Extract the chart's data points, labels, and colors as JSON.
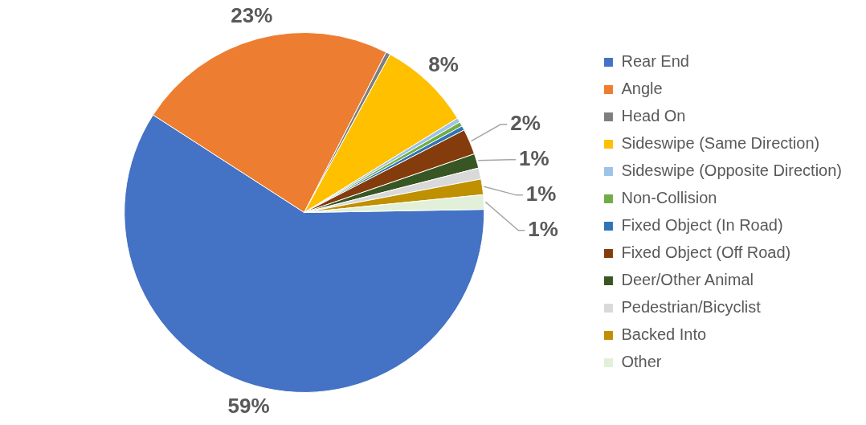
{
  "chart_data": {
    "type": "pie",
    "categories": [
      "Rear End",
      "Angle",
      "Head On",
      "Sideswipe (Same Direction)",
      "Sideswipe (Opposite Direction)",
      "Non-Collision",
      "Fixed Object (In Road)",
      "Fixed Object (Off Road)",
      "Deer/Other Animal",
      "Pedestrian/Bicyclist",
      "Backed Into",
      "Other"
    ],
    "values": [
      59.4,
      23.4,
      0.4,
      8.3,
      0.4,
      0.4,
      0.4,
      2.3,
      1.3,
      1.0,
      1.4,
      1.3
    ],
    "value_labels": [
      "59%",
      "23%",
      null,
      "8%",
      null,
      null,
      null,
      "2%",
      "1%",
      null,
      "1%",
      "1%"
    ],
    "colors": [
      "#4472c4",
      "#ed7d31",
      "#7f7f7f",
      "#ffc000",
      "#9dc3e6",
      "#70ad47",
      "#2e75b6",
      "#843c0c",
      "#375623",
      "#d9d9d9",
      "#bf9000",
      "#e2f0d9"
    ],
    "legend": "right"
  }
}
